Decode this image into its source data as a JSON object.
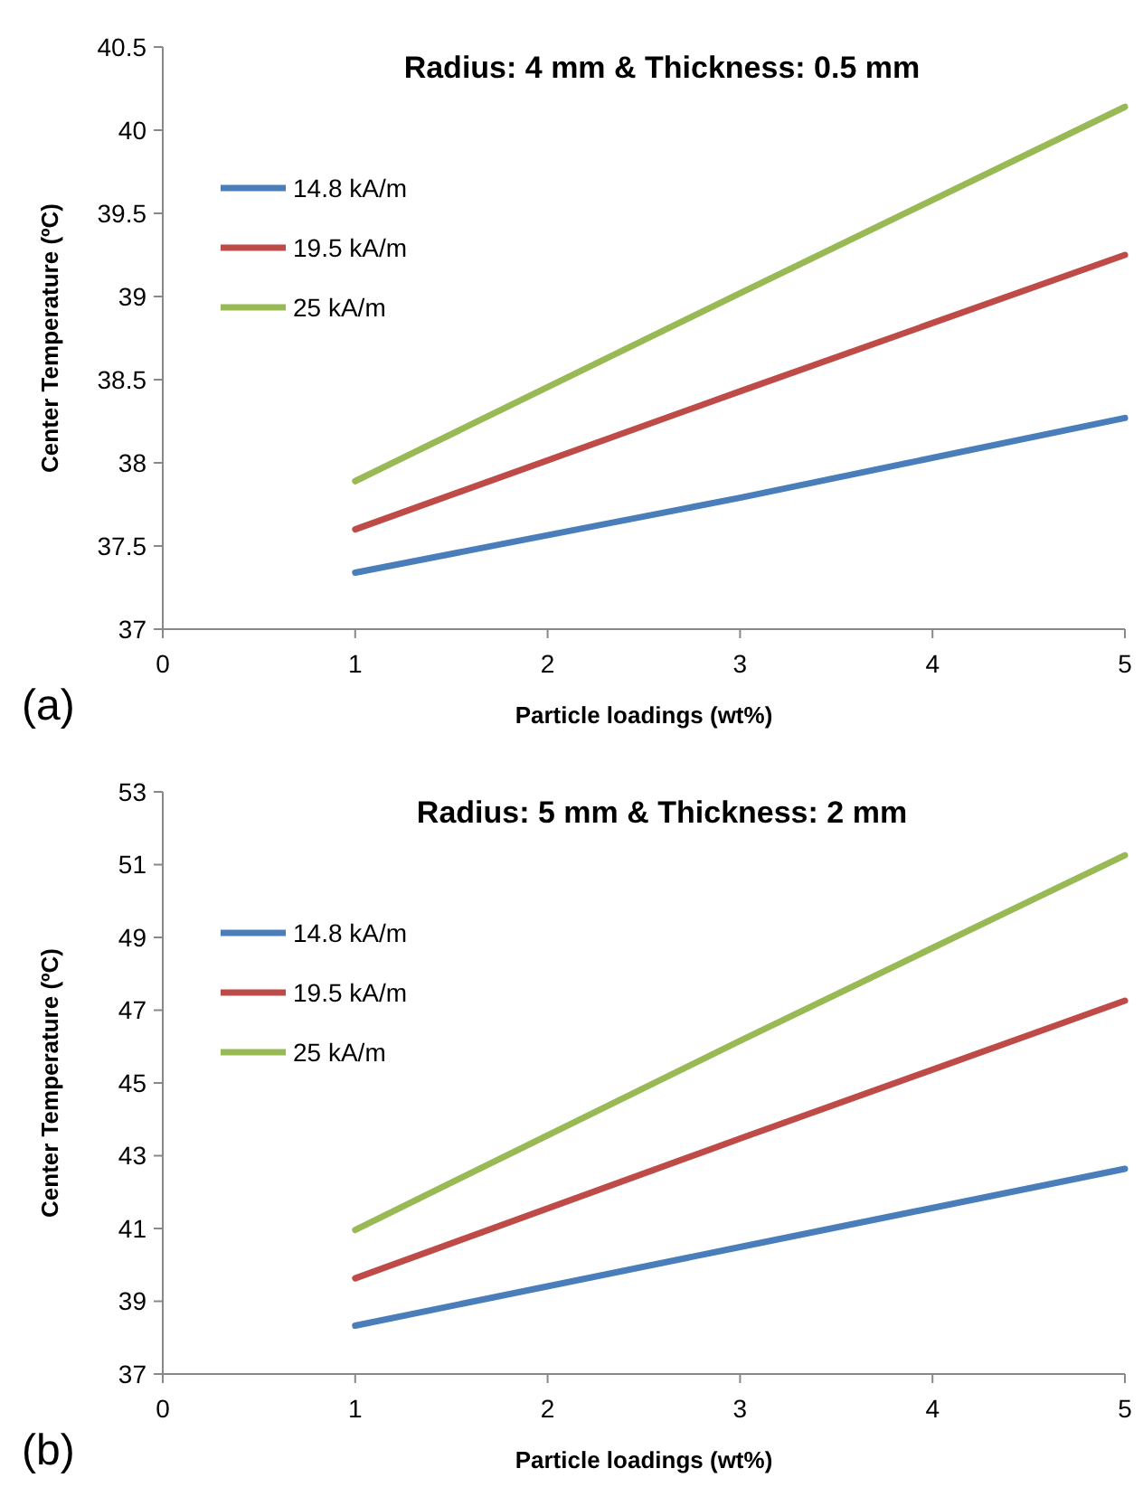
{
  "chart_data": [
    {
      "type": "line",
      "title": "Radius: 4 mm & Thickness: 0.5 mm",
      "xlabel": "Particle loadings (wt%)",
      "ylabel": "Center Temperature (ºC)",
      "annotations": [
        "(a)"
      ],
      "x": [
        1,
        3,
        5
      ],
      "xlim": [
        0,
        5
      ],
      "xticks": [
        0,
        1,
        2,
        3,
        4,
        5
      ],
      "ylim": [
        37,
        40.5
      ],
      "yticks": [
        {
          "value": 37,
          "label": "37"
        },
        {
          "value": 37.5,
          "label": "37.5"
        },
        {
          "value": 38,
          "label": "38"
        },
        {
          "value": 38.5,
          "label": "38.5"
        },
        {
          "value": 39,
          "label": "39"
        },
        {
          "value": 39.5,
          "label": "39.5"
        },
        {
          "value": 40,
          "label": "40"
        },
        {
          "value": 40.5,
          "label": "40.5"
        }
      ],
      "grid": false,
      "legend": "top left",
      "marker": "none",
      "line_style": "solid",
      "series": [
        {
          "name": "14.8 kA/m",
          "color": "#4a7ebb",
          "values": [
            37.34,
            37.79,
            38.27
          ]
        },
        {
          "name": "19.5 kA/m",
          "color": "#be4b48",
          "values": [
            37.6,
            38.43,
            39.25
          ]
        },
        {
          "name": "25 kA/m",
          "color": "#98b954",
          "values": [
            37.89,
            39.02,
            40.14
          ]
        }
      ]
    },
    {
      "type": "line",
      "title": "Radius: 5 mm & Thickness: 2 mm",
      "xlabel": "Particle loadings (wt%)",
      "ylabel": "Center Temperature (ºC)",
      "annotations": [
        "(b)"
      ],
      "x": [
        1,
        3,
        5
      ],
      "xlim": [
        0,
        5
      ],
      "xticks": [
        0,
        1,
        2,
        3,
        4,
        5
      ],
      "ylim": [
        37,
        53
      ],
      "yticks": [
        37,
        39,
        41,
        43,
        45,
        47,
        49,
        51,
        53
      ],
      "grid": false,
      "legend": "top left",
      "marker": "none",
      "line_style": "solid",
      "series": [
        {
          "name": "14.8 kA/m",
          "color": "#4a7ebb",
          "values": [
            38.33,
            40.49,
            42.64
          ]
        },
        {
          "name": "19.5 kA/m",
          "color": "#be4b48",
          "values": [
            39.63,
            43.47,
            47.26
          ]
        },
        {
          "name": "25 kA/m",
          "color": "#98b954",
          "values": [
            40.96,
            46.16,
            51.26
          ]
        }
      ]
    }
  ]
}
